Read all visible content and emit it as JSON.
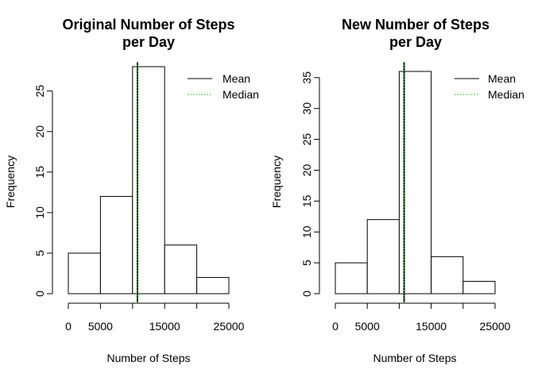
{
  "chart_data": [
    {
      "type": "bar",
      "title_lines": [
        "Original Number of Steps",
        "per Day"
      ],
      "xlabel": "Number of Steps",
      "ylabel": "Frequency",
      "bins": [
        [
          0,
          5000
        ],
        [
          5000,
          10000
        ],
        [
          10000,
          15000
        ],
        [
          15000,
          20000
        ],
        [
          20000,
          25000
        ]
      ],
      "values": [
        5,
        12,
        28,
        6,
        2
      ],
      "xlim": [
        0,
        25000
      ],
      "ylim": [
        0,
        28
      ],
      "xticks": [
        0,
        5000,
        10000,
        15000,
        20000,
        25000
      ],
      "xtick_labels": [
        "0",
        "5000",
        "",
        "15000",
        "",
        "25000"
      ],
      "yticks": [
        0,
        5,
        10,
        15,
        20,
        25
      ],
      "ytick_labels": [
        "0",
        "5",
        "10",
        "15",
        "20",
        "25"
      ],
      "mean": 10766,
      "median": 10765,
      "legend": [
        {
          "label": "Mean",
          "color": "#000000",
          "style": "solid"
        },
        {
          "label": "Median",
          "color": "#00cd00",
          "style": "dotted"
        }
      ],
      "legend_position": "top-right",
      "grid": false
    },
    {
      "type": "bar",
      "title_lines": [
        "New Number of Steps",
        "per Day"
      ],
      "xlabel": "Number of Steps",
      "ylabel": "Frequency",
      "bins": [
        [
          0,
          5000
        ],
        [
          5000,
          10000
        ],
        [
          10000,
          15000
        ],
        [
          15000,
          20000
        ],
        [
          20000,
          25000
        ]
      ],
      "values": [
        5,
        12,
        36,
        6,
        2
      ],
      "xlim": [
        0,
        25000
      ],
      "ylim": [
        0,
        36
      ],
      "xticks": [
        0,
        5000,
        10000,
        15000,
        20000,
        25000
      ],
      "xtick_labels": [
        "0",
        "5000",
        "",
        "15000",
        "",
        "25000"
      ],
      "yticks": [
        0,
        5,
        10,
        15,
        20,
        25,
        30,
        35
      ],
      "ytick_labels": [
        "0",
        "5",
        "10",
        "15",
        "20",
        "25",
        "30",
        "35"
      ],
      "mean": 10766,
      "median": 10766,
      "legend": [
        {
          "label": "Mean",
          "color": "#000000",
          "style": "solid"
        },
        {
          "label": "Median",
          "color": "#00cd00",
          "style": "dotted"
        }
      ],
      "legend_position": "top-right",
      "grid": false
    }
  ]
}
